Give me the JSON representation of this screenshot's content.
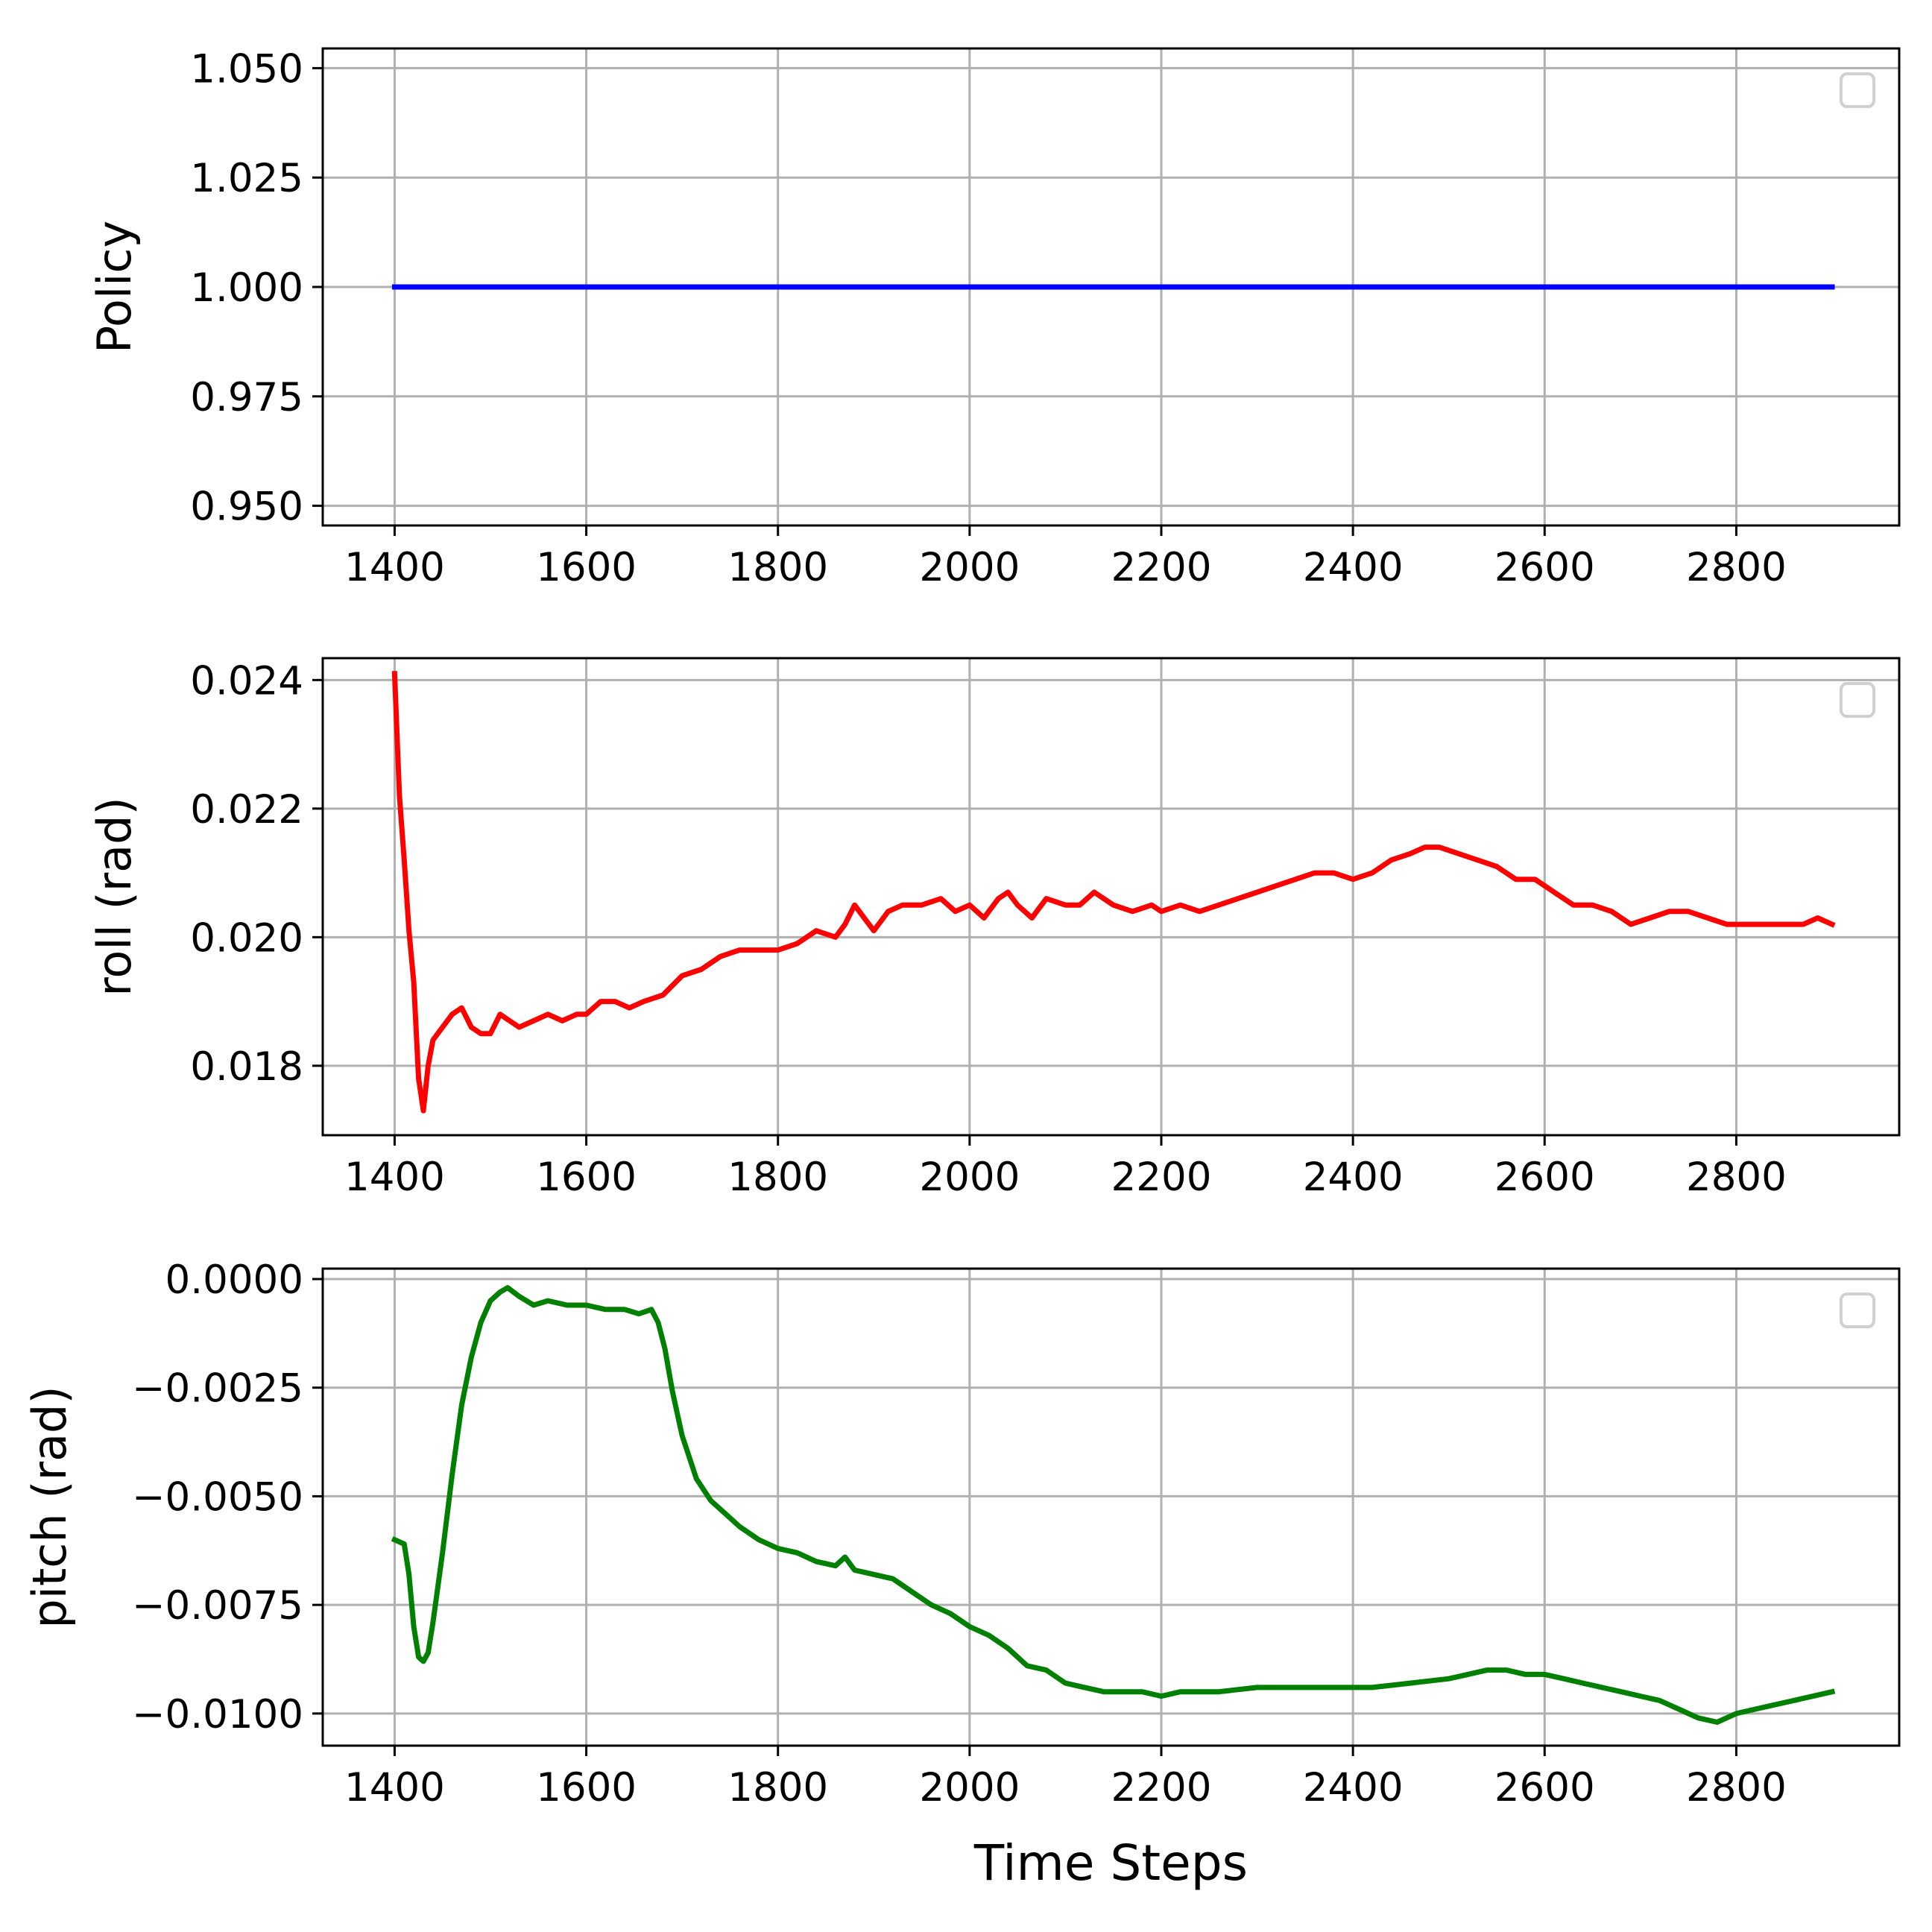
{
  "chart_data": [
    {
      "type": "line",
      "ylabel": "Policy",
      "xlabel": "",
      "xlim": [
        1325,
        2970
      ],
      "ylim": [
        0.9455,
        1.0545
      ],
      "xticks": [
        1400,
        1600,
        1800,
        2000,
        2200,
        2400,
        2600,
        2800
      ],
      "xtick_labels": [
        "1400",
        "1600",
        "1800",
        "2000",
        "2200",
        "2400",
        "2600",
        "2800"
      ],
      "yticks": [
        0.95,
        0.975,
        1.0,
        1.025,
        1.05
      ],
      "ytick_labels": [
        "0.950",
        "0.975",
        "1.000",
        "1.025",
        "1.050"
      ],
      "grid": true,
      "legend": "top-right (empty)",
      "series": [
        {
          "color": "#0000ff",
          "x": [
            1400,
            1500,
            1600,
            1700,
            1800,
            1900,
            2000,
            2100,
            2200,
            2300,
            2400,
            2500,
            2600,
            2700,
            2800,
            2900
          ],
          "y": [
            1.0,
            1.0,
            1.0,
            1.0,
            1.0,
            1.0,
            1.0,
            1.0,
            1.0,
            1.0,
            1.0,
            1.0,
            1.0,
            1.0,
            1.0,
            1.0
          ]
        }
      ]
    },
    {
      "type": "line",
      "ylabel": "roll (rad)",
      "xlabel": "",
      "xlim": [
        1325,
        2970
      ],
      "ylim": [
        0.01692,
        0.02434
      ],
      "xticks": [
        1400,
        1600,
        1800,
        2000,
        2200,
        2400,
        2600,
        2800
      ],
      "xtick_labels": [
        "1400",
        "1600",
        "1800",
        "2000",
        "2200",
        "2400",
        "2600",
        "2800"
      ],
      "yticks": [
        0.018,
        0.02,
        0.022,
        0.024
      ],
      "ytick_labels": [
        "0.018",
        "0.020",
        "0.022",
        "0.024"
      ],
      "grid": true,
      "legend": "top-right (empty)",
      "series": [
        {
          "color": "#ff0000",
          "x": [
            1400,
            1405,
            1410,
            1415,
            1420,
            1425,
            1430,
            1435,
            1440,
            1445,
            1450,
            1460,
            1470,
            1480,
            1490,
            1500,
            1510,
            1520,
            1530,
            1545,
            1560,
            1575,
            1590,
            1600,
            1615,
            1630,
            1645,
            1660,
            1680,
            1700,
            1720,
            1740,
            1760,
            1780,
            1800,
            1820,
            1840,
            1860,
            1870,
            1880,
            1890,
            1900,
            1915,
            1930,
            1950,
            1970,
            1985,
            2000,
            2015,
            2030,
            2040,
            2050,
            2065,
            2080,
            2100,
            2115,
            2130,
            2150,
            2170,
            2190,
            2200,
            2220,
            2240,
            2260,
            2280,
            2300,
            2320,
            2340,
            2360,
            2380,
            2400,
            2420,
            2440,
            2460,
            2475,
            2490,
            2510,
            2530,
            2550,
            2570,
            2590,
            2610,
            2630,
            2650,
            2670,
            2690,
            2710,
            2730,
            2750,
            2770,
            2790,
            2810,
            2830,
            2850,
            2870,
            2885,
            2900
          ],
          "y": [
            0.0241,
            0.0222,
            0.0212,
            0.0201,
            0.0193,
            0.0178,
            0.0173,
            0.018,
            0.0184,
            0.0185,
            0.0186,
            0.0188,
            0.0189,
            0.0186,
            0.0185,
            0.0185,
            0.0188,
            0.0187,
            0.0186,
            0.0187,
            0.0188,
            0.0187,
            0.0188,
            0.0188,
            0.019,
            0.019,
            0.0189,
            0.019,
            0.0191,
            0.0194,
            0.0195,
            0.0197,
            0.0198,
            0.0198,
            0.0198,
            0.0199,
            0.0201,
            0.02,
            0.0202,
            0.0205,
            0.0203,
            0.0201,
            0.0204,
            0.0205,
            0.0205,
            0.0206,
            0.0204,
            0.0205,
            0.0203,
            0.0206,
            0.0207,
            0.0205,
            0.0203,
            0.0206,
            0.0205,
            0.0205,
            0.0207,
            0.0205,
            0.0204,
            0.0205,
            0.0204,
            0.0205,
            0.0204,
            0.0205,
            0.0206,
            0.0207,
            0.0208,
            0.0209,
            0.021,
            0.021,
            0.0209,
            0.021,
            0.0212,
            0.0213,
            0.0214,
            0.0214,
            0.0213,
            0.0212,
            0.0211,
            0.0209,
            0.0209,
            0.0207,
            0.0205,
            0.0205,
            0.0204,
            0.0202,
            0.0203,
            0.0204,
            0.0204,
            0.0203,
            0.0202,
            0.0202,
            0.0202,
            0.0202,
            0.0202,
            0.0203,
            0.0202
          ]
        }
      ]
    },
    {
      "type": "line",
      "ylabel": "pitch (rad)",
      "xlabel": "Time Steps",
      "xlim": [
        1325,
        2970
      ],
      "ylim": [
        -0.01074,
        0.00024
      ],
      "xticks": [
        1400,
        1600,
        1800,
        2000,
        2200,
        2400,
        2600,
        2800
      ],
      "xtick_labels": [
        "1400",
        "1600",
        "1800",
        "2000",
        "2200",
        "2400",
        "2600",
        "2800"
      ],
      "yticks": [
        -0.01,
        -0.0075,
        -0.005,
        -0.0025,
        0.0
      ],
      "ytick_labels": [
        "−0.0100",
        "−0.0075",
        "−0.0050",
        "−0.0025",
        "0.0000"
      ],
      "grid": true,
      "legend": "top-right (empty)",
      "series": [
        {
          "color": "#008000",
          "x": [
            1400,
            1410,
            1415,
            1420,
            1425,
            1430,
            1435,
            1440,
            1450,
            1460,
            1470,
            1480,
            1490,
            1500,
            1510,
            1518,
            1530,
            1545,
            1560,
            1580,
            1600,
            1620,
            1640,
            1655,
            1668,
            1675,
            1682,
            1690,
            1700,
            1715,
            1730,
            1745,
            1760,
            1780,
            1800,
            1820,
            1840,
            1860,
            1870,
            1880,
            1900,
            1920,
            1940,
            1960,
            1980,
            2000,
            2020,
            2040,
            2060,
            2080,
            2100,
            2120,
            2140,
            2160,
            2180,
            2200,
            2220,
            2240,
            2260,
            2300,
            2340,
            2380,
            2420,
            2460,
            2500,
            2520,
            2540,
            2560,
            2580,
            2600,
            2620,
            2640,
            2660,
            2680,
            2700,
            2720,
            2740,
            2760,
            2780,
            2800,
            2820,
            2840,
            2860,
            2880,
            2900
          ],
          "y": [
            -0.006,
            -0.0061,
            -0.0068,
            -0.008,
            -0.0087,
            -0.0088,
            -0.0086,
            -0.0079,
            -0.0063,
            -0.0045,
            -0.0029,
            -0.0018,
            -0.001,
            -0.0005,
            -0.0003,
            -0.0002,
            -0.0004,
            -0.0006,
            -0.0005,
            -0.0006,
            -0.0006,
            -0.0007,
            -0.0007,
            -0.0008,
            -0.0007,
            -0.001,
            -0.0016,
            -0.0026,
            -0.0036,
            -0.0046,
            -0.0051,
            -0.0054,
            -0.0057,
            -0.006,
            -0.0062,
            -0.0063,
            -0.0065,
            -0.0066,
            -0.0064,
            -0.0067,
            -0.0068,
            -0.0069,
            -0.0072,
            -0.0075,
            -0.0077,
            -0.008,
            -0.0082,
            -0.0085,
            -0.0089,
            -0.009,
            -0.0093,
            -0.0094,
            -0.0095,
            -0.0095,
            -0.0095,
            -0.0096,
            -0.0095,
            -0.0095,
            -0.0095,
            -0.0094,
            -0.0094,
            -0.0094,
            -0.0094,
            -0.0093,
            -0.0092,
            -0.0091,
            -0.009,
            -0.009,
            -0.0091,
            -0.0091,
            -0.0092,
            -0.0093,
            -0.0094,
            -0.0095,
            -0.0096,
            -0.0097,
            -0.0099,
            -0.0101,
            -0.0102,
            -0.01,
            -0.0099,
            -0.0098,
            -0.0097,
            -0.0096,
            -0.0095
          ]
        }
      ]
    }
  ]
}
